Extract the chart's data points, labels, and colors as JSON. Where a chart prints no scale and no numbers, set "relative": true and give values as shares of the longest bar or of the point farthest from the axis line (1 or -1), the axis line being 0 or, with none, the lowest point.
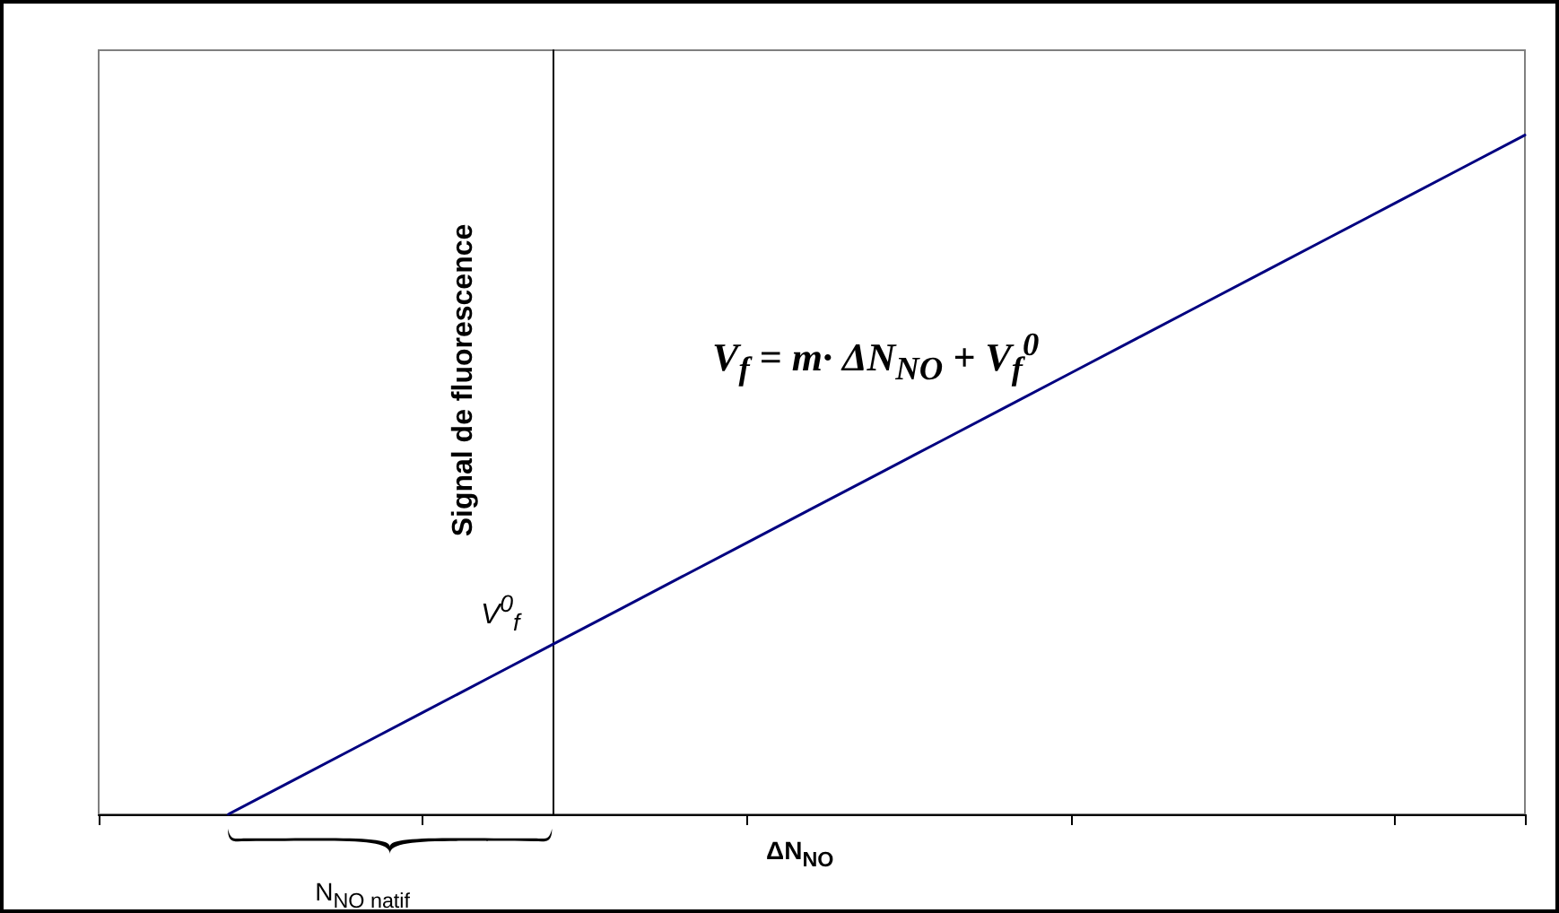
{
  "chart_data": {
    "type": "line",
    "relative": true,
    "xlabel": "ΔN$_{NO}$",
    "ylabel": "Signal de fluorescence",
    "annotations": [
      "V$^{0}$$_{f}$",
      "V$_{f}$ = m· ΔN$_{NO}$ + V$_{f}$$^{0}$",
      "N$_{NO natif}$"
    ],
    "categories": [
      null,
      null,
      null,
      null,
      null,
      null,
      null,
      null,
      null,
      null,
      null,
      null,
      null,
      null,
      null,
      null,
      null,
      null,
      null,
      null,
      null,
      null,
      null
    ],
    "series": [
      {
        "color": "#000080",
        "values": [
          null,
          null,
          0,
          0.05,
          0.1,
          0.15,
          0.2,
          0.25,
          0.3,
          0.35,
          0.4,
          0.45,
          0.5,
          0.55,
          0.6,
          0.65,
          0.7,
          0.75,
          0.8,
          0.85,
          0.9,
          0.95,
          1
        ]
      }
    ],
    "grid": false,
    "marker": "none",
    "line_style": "solid"
  }
}
